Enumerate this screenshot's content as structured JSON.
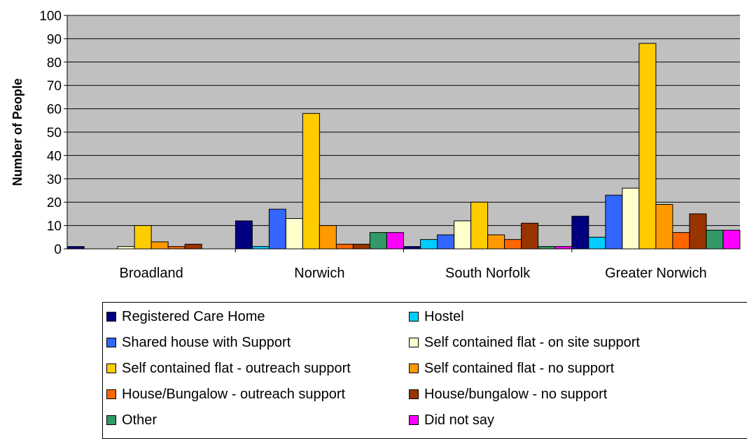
{
  "chart_data": {
    "type": "bar",
    "title": "",
    "xlabel": "",
    "ylabel": "Number of People",
    "ylim": [
      0,
      100
    ],
    "yticks": [
      0,
      10,
      20,
      30,
      40,
      50,
      60,
      70,
      80,
      90,
      100
    ],
    "grid": true,
    "legend_position": "bottom",
    "categories": [
      "Broadland",
      "Norwich",
      "South Norfolk",
      "Greater Norwich"
    ],
    "series": [
      {
        "name": "Registered Care Home",
        "color": "#000080",
        "values": [
          1,
          12,
          1,
          14
        ]
      },
      {
        "name": "Hostel",
        "color": "#00ccff",
        "values": [
          0,
          1,
          4,
          5
        ]
      },
      {
        "name": "Shared house with Support",
        "color": "#3366ff",
        "values": [
          0,
          17,
          6,
          23
        ]
      },
      {
        "name": "Self contained flat - on site support",
        "color": "#ffffcc",
        "values": [
          1,
          13,
          12,
          26
        ]
      },
      {
        "name": "Self contained flat - outreach support",
        "color": "#ffcc00",
        "values": [
          10,
          58,
          20,
          88
        ]
      },
      {
        "name": "Self contained flat - no support",
        "color": "#ff9900",
        "values": [
          3,
          10,
          6,
          19
        ]
      },
      {
        "name": "House/Bungalow - outreach support",
        "color": "#ff6600",
        "values": [
          1,
          2,
          4,
          7
        ]
      },
      {
        "name": "House/bungalow - no support",
        "color": "#993300",
        "values": [
          2,
          2,
          11,
          15
        ]
      },
      {
        "name": "Other",
        "color": "#339966",
        "values": [
          0,
          7,
          1,
          8
        ]
      },
      {
        "name": "Did not say",
        "color": "#ff00ff",
        "values": [
          0,
          7,
          1,
          8
        ]
      }
    ]
  }
}
